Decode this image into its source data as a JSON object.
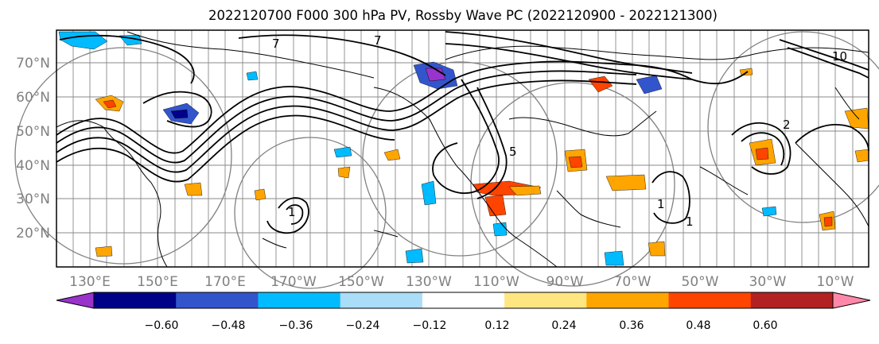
{
  "title": "2022120700 F000 300 hPa PV, Rossby Wave PC (2022120900 - 2022121300)",
  "lat_labels": [
    "70°N",
    "60°N",
    "50°N",
    "40°N",
    "30°N",
    "20°N"
  ],
  "lon_labels": [
    "130°E",
    "150°E",
    "170°E",
    "170°W",
    "150°W",
    "130°W",
    "110°W",
    "90°W",
    "70°W",
    "50°W",
    "30°W",
    "10°W"
  ],
  "contour_labels": [
    "7",
    "10",
    "7",
    "5",
    "2",
    "1",
    "1",
    "1"
  ],
  "colorbar": {
    "ticks": [
      "−0.60",
      "−0.48",
      "−0.36",
      "−0.24",
      "−0.12",
      "0.12",
      "0.24",
      "0.36",
      "0.48",
      "0.60"
    ],
    "colors": [
      "#9933cc",
      "#000088",
      "#3355cc",
      "#00bbff",
      "#aaddf7",
      "#ffffff",
      "#ffe680",
      "#ffa500",
      "#ff4400",
      "#b22222",
      "#ff88aa"
    ]
  }
}
